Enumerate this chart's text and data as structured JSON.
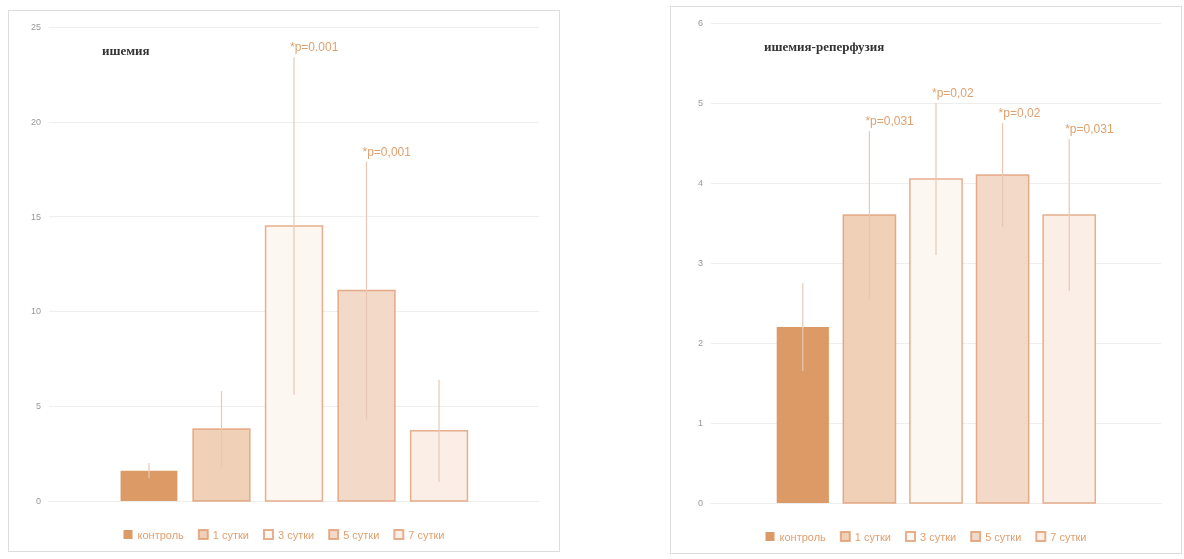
{
  "chart_data": [
    {
      "type": "bar",
      "title": "ишемия",
      "categories": [
        null
      ],
      "ylim": [
        0,
        25
      ],
      "yticks": [
        0,
        5,
        10,
        15,
        20,
        25
      ],
      "grid": "y",
      "legend": "bottom",
      "annotations": [
        "*p=0.001",
        "*p=0,001"
      ],
      "series": [
        {
          "name": "контроль",
          "color": "#dc9a66",
          "values": [
            1.6
          ],
          "errors": [
            0.4
          ]
        },
        {
          "name": "1 сутки",
          "color": "#f0d0b6",
          "values": [
            3.8
          ],
          "errors": [
            2
          ]
        },
        {
          "name": "3 сутки",
          "color": "#fdf7f2",
          "values": [
            14.5
          ],
          "errors": [
            8.9
          ]
        },
        {
          "name": "5 сутки",
          "color": "#f3d9c8",
          "values": [
            11.1
          ],
          "errors": [
            6.8
          ]
        },
        {
          "name": "7 сутки",
          "color": "#faeee7",
          "values": [
            3.7
          ],
          "errors": [
            2.7
          ]
        }
      ]
    },
    {
      "type": "bar",
      "title": "ишемия-реперфузия",
      "categories": [
        null
      ],
      "ylim": [
        0,
        6
      ],
      "yticks": [
        0,
        1,
        2,
        3,
        4,
        5,
        6
      ],
      "grid": "y",
      "legend": "bottom",
      "annotations": [
        "*p=0,031",
        "*p=0,02",
        "*p=0,02",
        "*p=0,031"
      ],
      "series": [
        {
          "name": "контроль",
          "color": "#dc9a66",
          "values": [
            2.2
          ],
          "errors": [
            0.55
          ]
        },
        {
          "name": "1 сутки",
          "color": "#f0d0b6",
          "values": [
            3.6
          ],
          "errors": [
            1.05
          ]
        },
        {
          "name": "3 сутки",
          "color": "#fdf7f2",
          "values": [
            4.05
          ],
          "errors": [
            0.95
          ]
        },
        {
          "name": "5 сутки",
          "color": "#f3d9c8",
          "values": [
            4.1
          ],
          "errors": [
            0.65
          ]
        },
        {
          "name": "7 сутки",
          "color": "#faeee7",
          "values": [
            3.6
          ],
          "errors": [
            0.95
          ]
        }
      ]
    }
  ]
}
